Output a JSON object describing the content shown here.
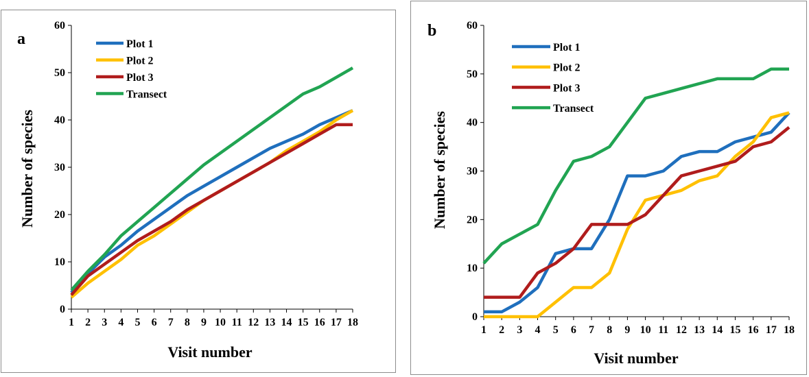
{
  "chart_data": [
    {
      "type": "line",
      "panel_label": "a",
      "xlabel": "Visit number",
      "ylabel": "Number  of species",
      "x": [
        1,
        2,
        3,
        4,
        5,
        6,
        7,
        8,
        9,
        10,
        11,
        12,
        13,
        14,
        15,
        16,
        17,
        18
      ],
      "ylim": [
        0,
        60
      ],
      "yticks": [
        0,
        10,
        20,
        30,
        40,
        50,
        60
      ],
      "grid": false,
      "legend_position": "top-left",
      "series": [
        {
          "name": "Plot 1",
          "color": "#1f6fbd",
          "values": [
            3.5,
            7.5,
            11,
            13.5,
            16.5,
            19,
            21.5,
            24,
            26,
            28,
            30,
            32,
            34,
            35.5,
            37,
            39,
            40.5,
            42
          ]
        },
        {
          "name": "Plot 2",
          "color": "#ffc000",
          "values": [
            2.5,
            5.5,
            8,
            10.5,
            13.5,
            15.5,
            18,
            20.5,
            23,
            25,
            27,
            29,
            31,
            33.5,
            35.5,
            37.5,
            40,
            42
          ]
        },
        {
          "name": "Plot 3",
          "color": "#b01c1c",
          "values": [
            3,
            7,
            9.5,
            12,
            14.5,
            16.5,
            18.5,
            21,
            23,
            25,
            27,
            29,
            31,
            33,
            35,
            37,
            39,
            39
          ]
        },
        {
          "name": "Transect",
          "color": "#21a452",
          "values": [
            4,
            8,
            11.5,
            15.5,
            18.5,
            21.5,
            24.5,
            27.5,
            30.5,
            33,
            35.5,
            38,
            40.5,
            43,
            45.5,
            47,
            49,
            51
          ]
        }
      ]
    },
    {
      "type": "line",
      "panel_label": "b",
      "xlabel": "Visit number",
      "ylabel": "Number of species",
      "x": [
        1,
        2,
        3,
        4,
        5,
        6,
        7,
        8,
        9,
        10,
        11,
        12,
        13,
        14,
        15,
        16,
        17,
        18
      ],
      "ylim": [
        0,
        60
      ],
      "yticks": [
        0,
        10,
        20,
        30,
        40,
        50,
        60
      ],
      "grid": false,
      "legend_position": "top-left",
      "series": [
        {
          "name": "Plot 1",
          "color": "#1f6fbd",
          "values": [
            1,
            1,
            3,
            6,
            13,
            14,
            14,
            20,
            29,
            29,
            30,
            33,
            34,
            34,
            36,
            37,
            38,
            42
          ]
        },
        {
          "name": "Plot 2",
          "color": "#ffc000",
          "values": [
            0,
            0,
            0,
            0,
            3,
            6,
            6,
            9,
            18,
            24,
            25,
            26,
            28,
            29,
            33,
            36,
            41,
            42
          ]
        },
        {
          "name": "Plot 3",
          "color": "#b01c1c",
          "values": [
            4,
            4,
            4,
            9,
            11,
            14,
            19,
            19,
            19,
            21,
            25,
            29,
            30,
            31,
            32,
            35,
            36,
            39
          ]
        },
        {
          "name": "Transect",
          "color": "#21a452",
          "values": [
            11,
            15,
            17,
            19,
            26,
            32,
            33,
            35,
            40,
            45,
            46,
            47,
            48,
            49,
            49,
            49,
            51,
            51
          ]
        }
      ]
    }
  ]
}
